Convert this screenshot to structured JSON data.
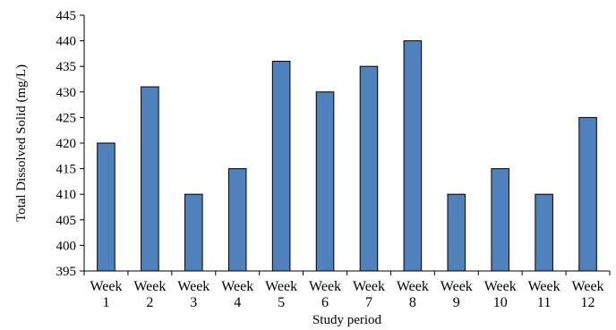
{
  "chart_data": {
    "type": "bar",
    "categories": [
      [
        "Week",
        "1"
      ],
      [
        "Week",
        "2"
      ],
      [
        "Week",
        "3"
      ],
      [
        "Week",
        "4"
      ],
      [
        "Week",
        "5"
      ],
      [
        "Week",
        "6"
      ],
      [
        "Week",
        "7"
      ],
      [
        "Week",
        "8"
      ],
      [
        "Week",
        "9"
      ],
      [
        "Week",
        "10"
      ],
      [
        "Week",
        "11"
      ],
      [
        "Week",
        "12"
      ]
    ],
    "values": [
      420,
      431,
      410,
      415,
      436,
      430,
      435,
      440,
      410,
      415,
      410,
      425
    ],
    "xlabel": "Study period",
    "ylabel": "Total Dissolved Solid (mg/L)",
    "ylim": [
      395,
      445
    ],
    "yticks": [
      "395",
      "400",
      "405",
      "410",
      "415",
      "420",
      "425",
      "430",
      "435",
      "440",
      "445"
    ],
    "grid": false,
    "legend": "none",
    "bar_color": "#4F81BD",
    "bar_edge_color": "#000000"
  }
}
